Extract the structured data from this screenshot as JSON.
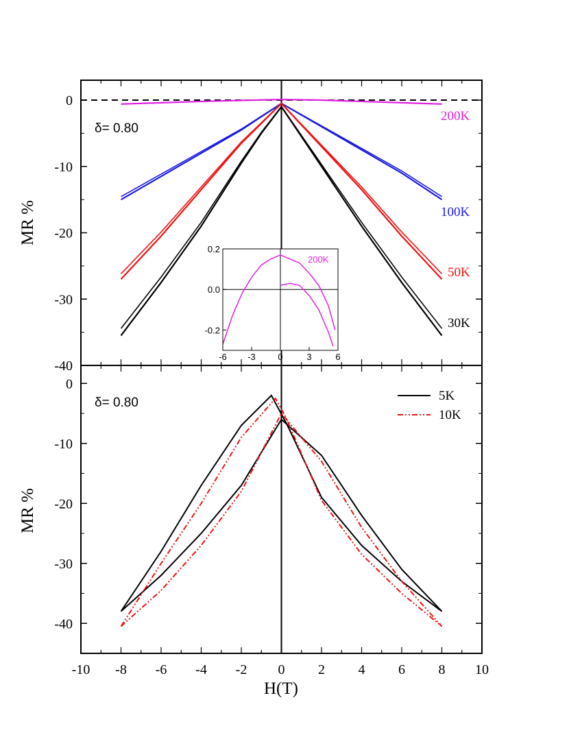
{
  "chart_data": [
    {
      "panel": "top",
      "type": "line",
      "xlim": [
        -10,
        10
      ],
      "ylim": [
        -40,
        3
      ],
      "yticks": [
        0,
        -10,
        -20,
        -30,
        -40
      ],
      "ylabel": "MR %",
      "annotation": "δ= 0.80",
      "reference_line": {
        "y": 0,
        "style": "dashed"
      },
      "series": [
        {
          "name": "200K",
          "color": "#e020e0",
          "x": [
            -8,
            -6,
            -4,
            -2,
            0,
            2,
            4,
            6,
            8
          ],
          "y": [
            -0.6,
            -0.4,
            -0.2,
            -0.05,
            0.1,
            0.0,
            -0.2,
            -0.4,
            -0.6
          ]
        },
        {
          "name": "100K",
          "color": "#1a1ae0",
          "x": [
            -8,
            -6,
            -4,
            -2,
            0,
            2,
            4,
            6,
            8
          ],
          "y": [
            -15,
            -11.5,
            -8,
            -4.5,
            -0.5,
            -4,
            -7.5,
            -11,
            -15
          ]
        },
        {
          "name": "50K",
          "color": "#ee1111",
          "x": [
            -8,
            -6,
            -4,
            -2,
            0,
            2,
            4,
            6,
            8
          ],
          "y": [
            -27,
            -20.5,
            -13.5,
            -6.5,
            -0.5,
            -7,
            -13.5,
            -20.5,
            -27
          ]
        },
        {
          "name": "30K",
          "color": "#000000",
          "x": [
            -8,
            -6,
            -4,
            -2,
            -1,
            0,
            2,
            4,
            6,
            8
          ],
          "y": [
            -35.5,
            -27.5,
            -19,
            -9.5,
            -5,
            -1,
            -10,
            -19,
            -27.5,
            -35.5
          ]
        }
      ],
      "inset": {
        "xlim": [
          -6,
          6
        ],
        "ylim": [
          -0.3,
          0.2
        ],
        "xticks": [
          -6,
          -3,
          0,
          3,
          6
        ],
        "yticks": [
          0.2,
          0.0,
          -0.2
        ],
        "series": [
          {
            "name": "200K",
            "color": "#e020e0",
            "x": [
              -6,
              -5,
              -4,
              -3,
              -2,
              -1,
              0,
              1,
              2,
              3,
              4,
              5,
              5.7
            ],
            "y": [
              -0.27,
              -0.13,
              -0.02,
              0.06,
              0.12,
              0.15,
              0.17,
              0.15,
              0.13,
              0.08,
              0.02,
              -0.08,
              -0.2
            ]
          },
          {
            "name": "200K",
            "color": "#e020e0",
            "x": [
              0,
              1,
              2,
              3,
              4,
              5,
              5.5
            ],
            "y": [
              0.02,
              0.03,
              0.02,
              -0.03,
              -0.1,
              -0.21,
              -0.28
            ]
          }
        ]
      }
    },
    {
      "panel": "bottom",
      "type": "line",
      "xlim": [
        -10,
        10
      ],
      "ylim": [
        -45,
        3
      ],
      "xticks": [
        -10,
        -8,
        -6,
        -4,
        -2,
        0,
        2,
        4,
        6,
        8,
        10
      ],
      "yticks": [
        0,
        -10,
        -20,
        -30,
        -40
      ],
      "xlabel": "H(T)",
      "ylabel": "MR %",
      "annotation": "δ= 0.80",
      "legend": "top-right",
      "series": [
        {
          "name": "5K",
          "color": "#000000",
          "style": "solid",
          "x": [
            -8,
            -6,
            -4,
            -2,
            -0.5,
            0.3,
            2,
            4,
            6,
            8,
            6,
            4,
            2,
            0,
            -2,
            -4,
            -6,
            -8
          ],
          "y": [
            -38,
            -28,
            -17,
            -7,
            -2,
            -7,
            -19,
            -27,
            -33,
            -38,
            -31,
            -22,
            -12,
            -6,
            -17,
            -25,
            -32,
            -38
          ]
        },
        {
          "name": "10K",
          "color": "#ee1111",
          "style": "dashdot",
          "x": [
            -8,
            -6,
            -4,
            -2,
            -0.3,
            0.2,
            2,
            4,
            6,
            8,
            6,
            4,
            2,
            0,
            -2,
            -4,
            -6,
            -8
          ],
          "y": [
            -40.5,
            -30,
            -20,
            -9,
            -2.5,
            -5.5,
            -19.5,
            -28.5,
            -35,
            -40.5,
            -33,
            -24,
            -13,
            -5,
            -18,
            -27,
            -34.5,
            -40.5
          ]
        }
      ]
    }
  ]
}
